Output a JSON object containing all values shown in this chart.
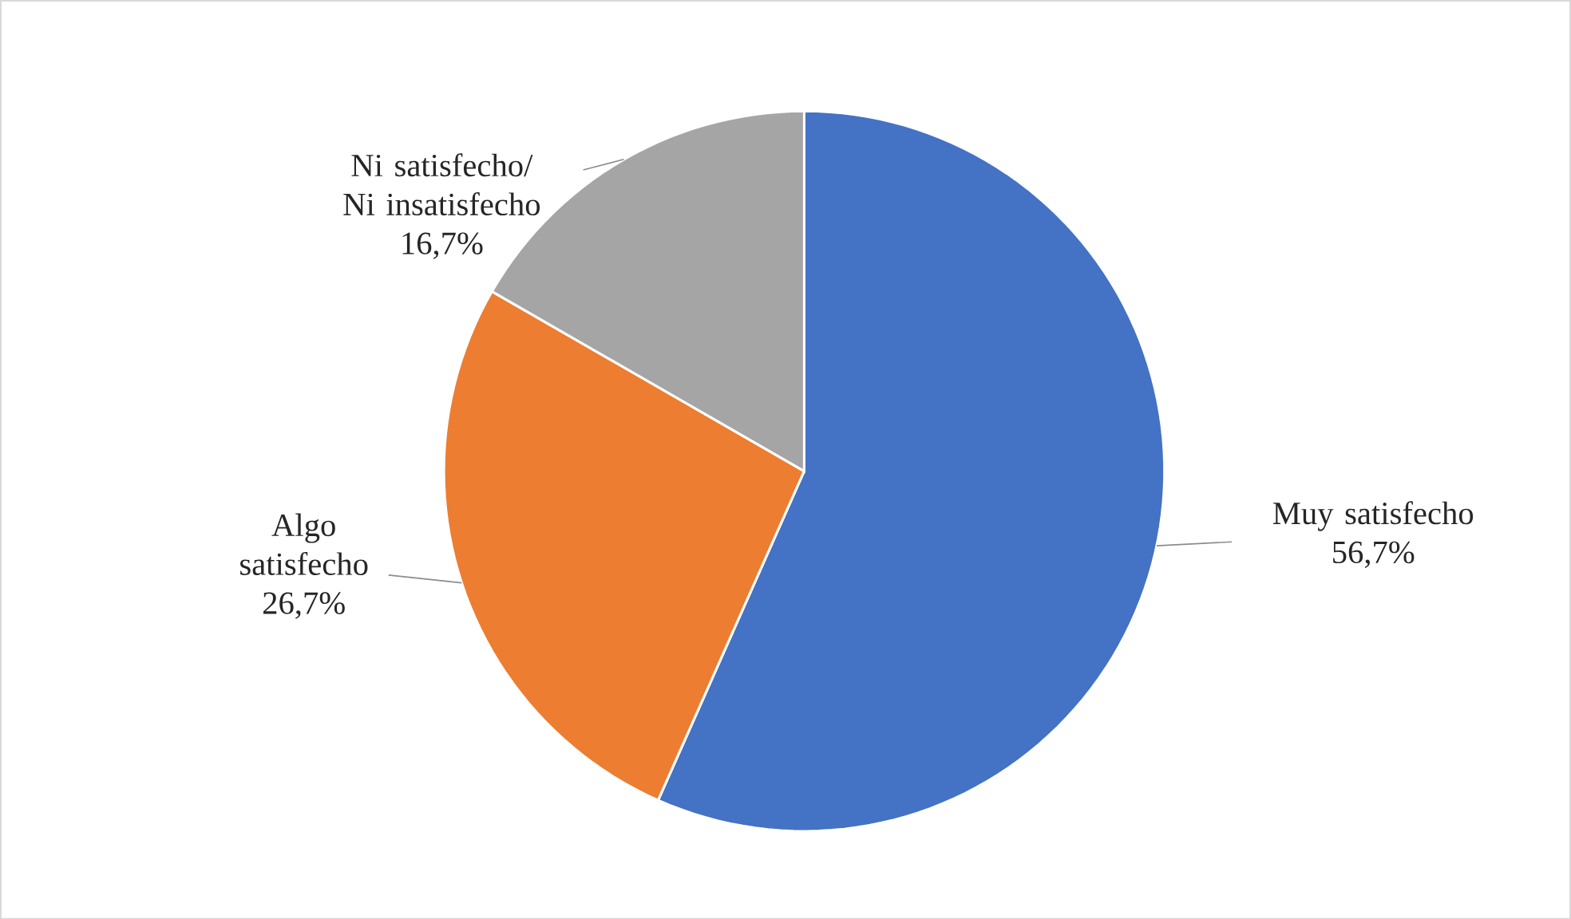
{
  "chart_data": {
    "type": "pie",
    "categories": [
      "Muy satisfecho",
      "Algo satisfecho",
      "Ni satisfecho/ Ni insatisfecho"
    ],
    "values": [
      56.7,
      26.7,
      16.7
    ],
    "colors": [
      "#4472c4",
      "#ed7d31",
      "#a5a5a5"
    ],
    "value_labels": [
      "56,7%",
      "26,7%",
      "16,7%"
    ]
  }
}
